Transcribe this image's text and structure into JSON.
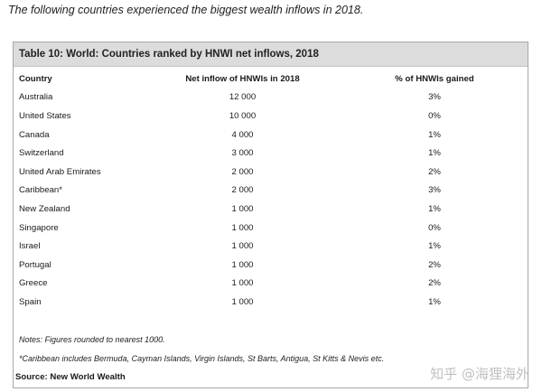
{
  "intro_text": "The following countries experienced the biggest wealth inflows in 2018.",
  "table": {
    "title": "Table 10: World: Countries ranked by HNWI net inflows, 2018",
    "columns": [
      "Country",
      "Net inflow of HNWIs in 2018",
      "% of HNWIs gained"
    ],
    "rows": [
      [
        "Australia",
        "12 000",
        "3%"
      ],
      [
        "United States",
        "10 000",
        "0%"
      ],
      [
        "Canada",
        "4 000",
        "1%"
      ],
      [
        "Switzerland",
        "3 000",
        "1%"
      ],
      [
        "United Arab Emirates",
        "2 000",
        "2%"
      ],
      [
        "Caribbean*",
        "2 000",
        "3%"
      ],
      [
        "New Zealand",
        "1 000",
        "1%"
      ],
      [
        "Singapore",
        "1 000",
        "0%"
      ],
      [
        "Israel",
        "1 000",
        "1%"
      ],
      [
        "Portugal",
        "1 000",
        "2%"
      ],
      [
        "Greece",
        "1 000",
        "2%"
      ],
      [
        "Spain",
        "1 000",
        "1%"
      ]
    ],
    "notes": [
      "Notes: Figures rounded to nearest 1000.",
      "*Caribbean includes Bermuda, Cayman Islands, Virgin Islands, St Barts, Antigua, St Kitts & Nevis etc."
    ],
    "source": "Source: New World Wealth"
  },
  "watermark": {
    "text": "知乎 @海狸海外",
    "icon": "at-sign-icon"
  }
}
